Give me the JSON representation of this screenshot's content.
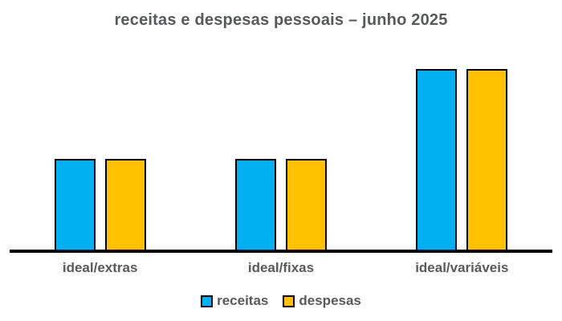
{
  "chart_data": {
    "type": "bar",
    "title": "receitas e despesas pessoais – junho 2025",
    "categories": [
      "ideal/extras",
      "ideal/fixas",
      "ideal/variáveis"
    ],
    "series": [
      {
        "name": "receitas",
        "color": "#00B0F0",
        "values": [
          50,
          50,
          100
        ]
      },
      {
        "name": "despesas",
        "color": "#FFC000",
        "values": [
          50,
          50,
          100
        ]
      }
    ],
    "ylim": [
      0,
      100
    ],
    "xlabel": "",
    "ylabel": "",
    "grid": false,
    "y_axis_visible": false,
    "legend_position": "bottom",
    "axis_color": "#000000",
    "text_color": "#58595B",
    "background": "#FFFFFF"
  }
}
